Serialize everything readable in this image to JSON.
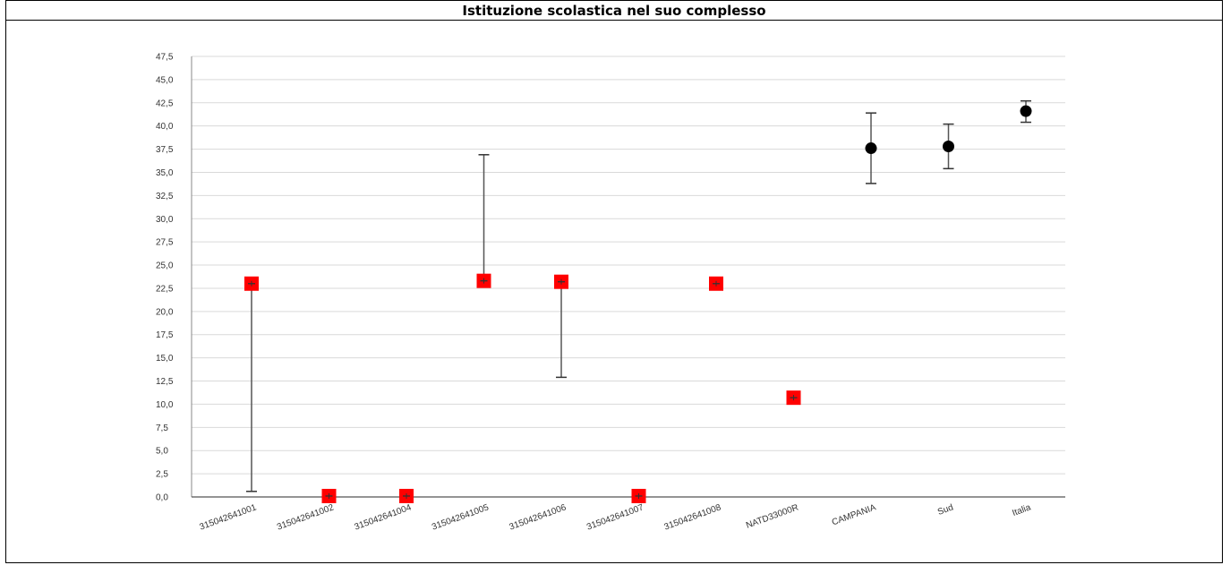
{
  "header": {
    "title": "Istituzione scolastica nel suo complesso"
  },
  "chart_data": {
    "type": "scatter",
    "title": "",
    "xlabel": "",
    "ylabel": "",
    "ylim": [
      0,
      47.5
    ],
    "ytick_step": 2.5,
    "ytick_labels": [
      "0,0",
      "2,5",
      "5,0",
      "7,5",
      "10,0",
      "12,5",
      "15,0",
      "17,5",
      "20,0",
      "22,5",
      "25,0",
      "27,5",
      "30,0",
      "32,5",
      "35,0",
      "37,5",
      "40,0",
      "42,5",
      "45,0",
      "47,5"
    ],
    "grid": true,
    "categories": [
      "315042641001",
      "315042641002",
      "315042641004",
      "315042641005",
      "315042641006",
      "315042641007",
      "315042641008",
      "NATD33000R",
      "CAMPANIA",
      "Sud",
      "Italia"
    ],
    "series": [
      {
        "color": "#ff0000",
        "marker": "square",
        "points": [
          {
            "category": "315042641001",
            "value": 23.0,
            "low": 0.6,
            "high": 23.0
          },
          {
            "category": "315042641002",
            "value": 0.1,
            "low": 0.1,
            "high": 0.1
          },
          {
            "category": "315042641004",
            "value": 0.1,
            "low": 0.1,
            "high": 0.1
          },
          {
            "category": "315042641005",
            "value": 23.3,
            "low": 23.3,
            "high": 36.9
          },
          {
            "category": "315042641006",
            "value": 23.2,
            "low": 12.9,
            "high": 23.2
          },
          {
            "category": "315042641007",
            "value": 0.1,
            "low": 0.1,
            "high": 0.1
          },
          {
            "category": "315042641008",
            "value": 23.0,
            "low": 23.0,
            "high": 23.0
          },
          {
            "category": "NATD33000R",
            "value": 10.7,
            "low": 10.7,
            "high": 10.7
          }
        ]
      },
      {
        "color": "#000000",
        "marker": "circle",
        "points": [
          {
            "category": "CAMPANIA",
            "value": 37.6,
            "low": 33.8,
            "high": 41.4
          },
          {
            "category": "Sud",
            "value": 37.8,
            "low": 35.4,
            "high": 40.2
          },
          {
            "category": "Italia",
            "value": 41.6,
            "low": 40.4,
            "high": 42.7
          }
        ]
      }
    ]
  }
}
